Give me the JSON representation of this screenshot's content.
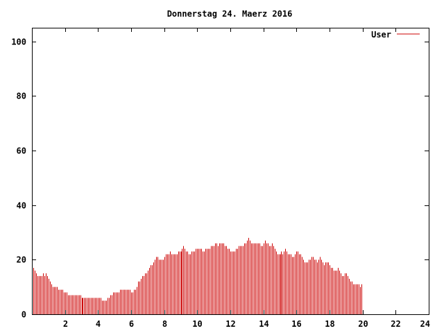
{
  "chart_data": {
    "type": "bar",
    "title": "Donnerstag 24. Maerz 2016",
    "xlabel": "",
    "ylabel": "",
    "xlim": [
      0,
      24
    ],
    "ylim": [
      0,
      105
    ],
    "x_ticks": [
      2,
      4,
      6,
      8,
      10,
      12,
      14,
      16,
      18,
      20,
      22,
      24
    ],
    "y_ticks": [
      0,
      20,
      40,
      60,
      80,
      100
    ],
    "grid": false,
    "legend_position": "top-right",
    "colors": {
      "series": "#cc0000",
      "axis": "#000000"
    },
    "sample_interval_minutes": 5,
    "series": [
      {
        "name": "User",
        "values": [
          17,
          17,
          16,
          15,
          14,
          14,
          14,
          14,
          15,
          14,
          15,
          14,
          13,
          12,
          11,
          10,
          10,
          10,
          10,
          9,
          9,
          9,
          9,
          8,
          8,
          8,
          7,
          7,
          7,
          7,
          7,
          7,
          7,
          7,
          7,
          7,
          6,
          6,
          6,
          6,
          6,
          6,
          6,
          6,
          6,
          6,
          6,
          6,
          6,
          6,
          6,
          5,
          5,
          5,
          5,
          6,
          6,
          7,
          7,
          8,
          8,
          8,
          8,
          8,
          9,
          9,
          9,
          9,
          9,
          9,
          9,
          9,
          8,
          8,
          9,
          9,
          10,
          12,
          12,
          13,
          14,
          14,
          15,
          15,
          16,
          17,
          18,
          18,
          19,
          20,
          21,
          21,
          20,
          20,
          20,
          20,
          21,
          22,
          22,
          22,
          23,
          22,
          22,
          22,
          22,
          22,
          23,
          23,
          23,
          24,
          25,
          24,
          23,
          23,
          22,
          22,
          23,
          23,
          23,
          24,
          24,
          24,
          24,
          24,
          23,
          23,
          24,
          24,
          24,
          24,
          25,
          25,
          25,
          26,
          26,
          25,
          26,
          26,
          26,
          26,
          25,
          25,
          24,
          24,
          23,
          23,
          23,
          23,
          24,
          24,
          25,
          25,
          25,
          25,
          26,
          26,
          27,
          28,
          27,
          26,
          26,
          26,
          26,
          26,
          26,
          26,
          25,
          25,
          26,
          27,
          26,
          26,
          25,
          25,
          26,
          25,
          24,
          23,
          22,
          22,
          22,
          23,
          22,
          23,
          24,
          23,
          22,
          22,
          22,
          21,
          21,
          22,
          23,
          23,
          22,
          22,
          21,
          20,
          19,
          19,
          19,
          20,
          20,
          21,
          21,
          20,
          20,
          19,
          20,
          21,
          20,
          19,
          18,
          19,
          19,
          19,
          18,
          17,
          17,
          16,
          16,
          16,
          17,
          16,
          15,
          14,
          14,
          15,
          15,
          14,
          13,
          12,
          12,
          11,
          11,
          11,
          11,
          11,
          10,
          11
        ]
      }
    ]
  }
}
